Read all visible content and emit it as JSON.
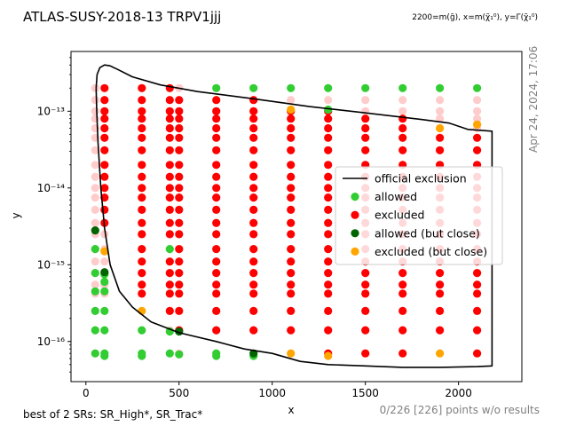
{
  "title": "ATLAS-SUSY-2018-13 TRPV1jjj",
  "subtitle": "2200=m(g̃), x=m(χ̃₁⁰), y=Γ(χ̃₁⁰)",
  "timestamp": "Apr 24, 2024, 17:06",
  "footer_left": "best of 2 SRs: SR_High*, SR_Trac*",
  "footer_right": "0/226 [226] points w/o results",
  "colors": {
    "allowed": "#32cd32",
    "excluded": "#ff0000",
    "allowed_close": "#006400",
    "excluded_close": "#ffa500",
    "official_line": "#000000",
    "faded_excluded": "#ffcccc"
  },
  "chart_data": {
    "type": "scatter",
    "xlabel": "x",
    "ylabel": "y",
    "xlim": [
      -80,
      2340
    ],
    "ylim": [
      3e-17,
      6e-13
    ],
    "yscale": "log",
    "xticks": [
      0,
      500,
      1000,
      1500,
      2000
    ],
    "xtick_labels": [
      "0",
      "500",
      "1000",
      "1500",
      "2000"
    ],
    "yticks": [
      1e-16,
      1e-15,
      1e-14,
      1e-13
    ],
    "ytick_labels": [
      "10⁻¹⁶",
      "10⁻¹⁵",
      "10⁻¹⁴",
      "10⁻¹³"
    ],
    "legend_position": "center-right",
    "legend": [
      {
        "label": "official exclusion",
        "kind": "line",
        "color": "#000000"
      },
      {
        "label": "allowed",
        "kind": "dot",
        "color": "#32cd32"
      },
      {
        "label": "excluded",
        "kind": "dot",
        "color": "#ff0000"
      },
      {
        "label": "allowed (but close)",
        "kind": "dot",
        "color": "#006400"
      },
      {
        "label": "excluded (but close)",
        "kind": "dot",
        "color": "#ffa500"
      }
    ],
    "official_exclusion": [
      [
        55,
        2e-13
      ],
      [
        60,
        3e-13
      ],
      [
        75,
        3.7e-13
      ],
      [
        100,
        4e-13
      ],
      [
        130,
        3.9e-13
      ],
      [
        170,
        3.5e-13
      ],
      [
        250,
        2.8e-13
      ],
      [
        400,
        2.2e-13
      ],
      [
        600,
        1.8e-13
      ],
      [
        900,
        1.45e-13
      ],
      [
        1200,
        1.15e-13
      ],
      [
        1500,
        9.5e-14
      ],
      [
        1800,
        7.8e-14
      ],
      [
        1950,
        7e-14
      ],
      [
        2050,
        5.8e-14
      ],
      [
        2180,
        5.5e-14
      ],
      [
        2180,
        4.8e-17
      ],
      [
        2100,
        4.7e-17
      ],
      [
        1900,
        4.6e-17
      ],
      [
        1700,
        4.6e-17
      ],
      [
        1500,
        4.8e-17
      ],
      [
        1300,
        5e-17
      ],
      [
        1150,
        5.5e-17
      ],
      [
        1000,
        7e-17
      ],
      [
        850,
        8e-17
      ],
      [
        700,
        1e-16
      ],
      [
        500,
        1.3e-16
      ],
      [
        350,
        1.8e-16
      ],
      [
        250,
        2.8e-16
      ],
      [
        180,
        4.5e-16
      ],
      [
        130,
        1e-15
      ],
      [
        100,
        3e-15
      ],
      [
        80,
        1e-14
      ],
      [
        65,
        4e-14
      ],
      [
        58,
        1e-13
      ],
      [
        55,
        2e-13
      ]
    ],
    "x_grid": [
      50,
      100,
      300,
      450,
      500,
      700,
      900,
      1100,
      1300,
      1500,
      1700,
      1900,
      2100
    ],
    "y_grid": [
      2e-13,
      1.4e-13,
      1e-13,
      8e-14,
      6e-14,
      4.5e-14,
      3.1e-14,
      2e-14,
      1.4e-14,
      1e-14,
      7.5e-15,
      5.2e-15,
      3.5e-15,
      2.5e-15,
      1.6e-15,
      1.1e-15,
      7.8e-16,
      5.5e-16,
      4.2e-16,
      2.5e-16,
      1.4e-16,
      7e-17
    ],
    "allowed_points": [
      [
        700,
        2e-13
      ],
      [
        900,
        2e-13
      ],
      [
        1100,
        2e-13
      ],
      [
        1300,
        2e-13
      ],
      [
        1500,
        2e-13
      ],
      [
        1700,
        2e-13
      ],
      [
        1900,
        2e-13
      ],
      [
        2100,
        2e-13
      ],
      [
        1300,
        1.05e-13
      ],
      [
        100,
        7.5e-16
      ],
      [
        100,
        6e-16
      ],
      [
        50,
        4.5e-16
      ],
      [
        100,
        4.5e-16
      ],
      [
        50,
        2.5e-16
      ],
      [
        100,
        2.5e-16
      ],
      [
        50,
        1.4e-16
      ],
      [
        100,
        1.4e-16
      ],
      [
        300,
        1.4e-16
      ],
      [
        450,
        1.35e-16
      ],
      [
        50,
        7e-17
      ],
      [
        100,
        7e-17
      ],
      [
        100,
        6.5e-17
      ],
      [
        300,
        7e-17
      ],
      [
        300,
        6.5e-17
      ],
      [
        450,
        7e-17
      ],
      [
        500,
        6.8e-17
      ],
      [
        700,
        7e-17
      ],
      [
        700,
        6.5e-17
      ],
      [
        900,
        6.5e-17
      ],
      [
        50,
        1.6e-15
      ],
      [
        50,
        7.8e-16
      ],
      [
        450,
        1.6e-15
      ]
    ],
    "allowed_close_points": [
      [
        50,
        2.8e-15
      ],
      [
        100,
        8e-16
      ],
      [
        500,
        1.35e-16
      ],
      [
        900,
        7e-17
      ]
    ],
    "excluded_close_points": [
      [
        1100,
        1.05e-13
      ],
      [
        2100,
        6.7e-14
      ],
      [
        1900,
        6e-14
      ],
      [
        100,
        1.5e-15
      ],
      [
        300,
        2.5e-16
      ],
      [
        1100,
        7e-17
      ],
      [
        1300,
        6.5e-17
      ],
      [
        1900,
        7e-17
      ]
    ]
  }
}
